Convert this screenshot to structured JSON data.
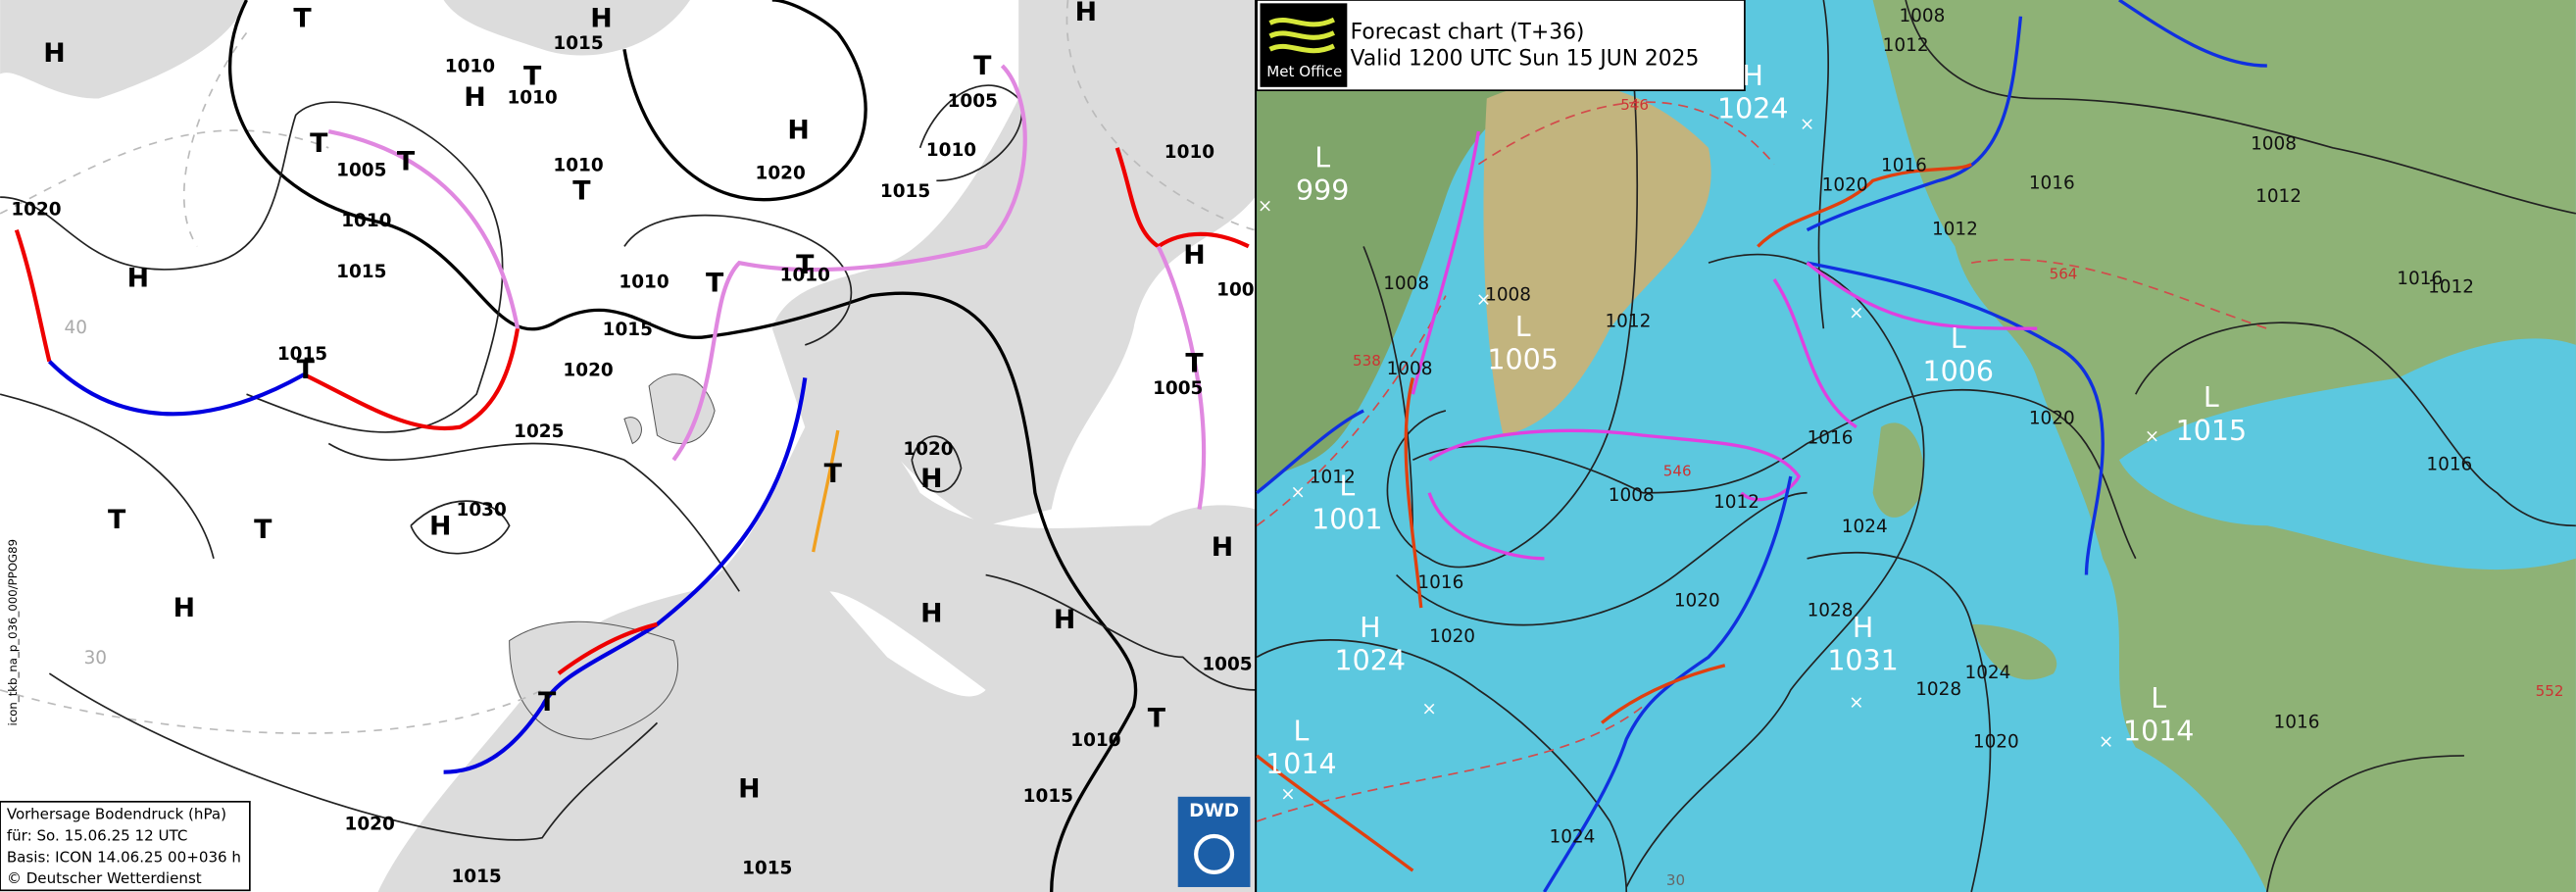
{
  "left_map": {
    "pressure_labels": [
      "1020",
      "1010",
      "1015",
      "1010",
      "1005",
      "1010",
      "1015",
      "1010",
      "1020",
      "1015",
      "1010",
      "1005",
      "1010",
      "1010",
      "1015",
      "1010",
      "1015",
      "1020",
      "1025",
      "1030",
      "1020",
      "1005",
      "100",
      "1005",
      "1010",
      "1015",
      "1020",
      "1015",
      "1015"
    ],
    "systems": [
      "H",
      "T",
      "H",
      "T",
      "H",
      "H",
      "H",
      "T",
      "T",
      "T",
      "T",
      "H",
      "T",
      "T",
      "T",
      "H",
      "T",
      "T",
      "H",
      "T",
      "T",
      "H",
      "H",
      "H",
      "H",
      "H",
      "T",
      "T",
      "H"
    ],
    "latitude_labels": [
      "40",
      "30"
    ],
    "side_label": "icon_tkb_na_p_036_000/PPOG89",
    "info_box": [
      "Vorhersage Bodendruck (hPa)",
      "für:  So. 15.06.25  12 UTC",
      "Basis: ICON  14.06.25 00+036 h",
      "© Deutscher Wetterdienst"
    ],
    "logo": "DWD"
  },
  "right_map": {
    "header": {
      "logo": "Met Office",
      "title": "Forecast chart (T+36)",
      "valid": "Valid 1200 UTC Sun 15 JUN 2025"
    },
    "centers": [
      {
        "type": "H",
        "value": "1024"
      },
      {
        "type": "L",
        "value": "999"
      },
      {
        "type": "L",
        "value": "1005"
      },
      {
        "type": "L",
        "value": "1006"
      },
      {
        "type": "L",
        "value": "1015"
      },
      {
        "type": "L",
        "value": "1001"
      },
      {
        "type": "H",
        "value": "1024"
      },
      {
        "type": "H",
        "value": "1031"
      },
      {
        "type": "L",
        "value": "1014"
      },
      {
        "type": "L",
        "value": "1014"
      }
    ],
    "isobar_labels": [
      "1008",
      "1012",
      "1020",
      "1016",
      "1012",
      "1016",
      "1008",
      "1012",
      "1016",
      "1012",
      "1016",
      "1008",
      "1008",
      "1008",
      "1012",
      "1020",
      "1008",
      "1012",
      "1016",
      "1024",
      "1012",
      "1016",
      "1020",
      "1020",
      "1028",
      "1028",
      "1024",
      "1020",
      "1016",
      "1024"
    ],
    "thickness_labels": [
      "546",
      "564",
      "546",
      "538",
      "552"
    ],
    "latitude_label": "30"
  }
}
